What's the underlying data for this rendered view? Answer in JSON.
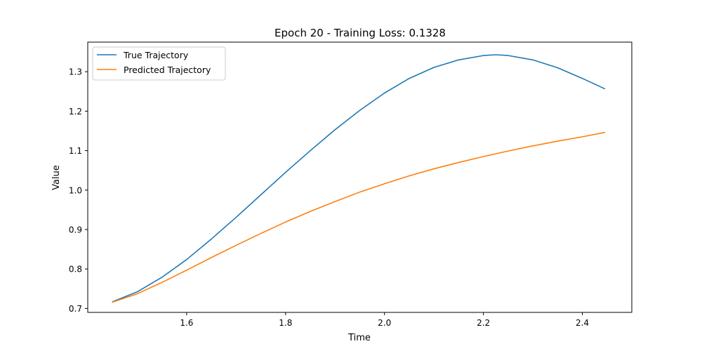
{
  "chart_data": {
    "type": "line",
    "title": "Epoch 20 - Training Loss: 0.1328",
    "xlabel": "Time",
    "ylabel": "Value",
    "xlim": [
      1.4,
      2.5
    ],
    "ylim": [
      0.69,
      1.375
    ],
    "xticks": [
      1.6,
      1.8,
      2.0,
      2.2,
      2.4
    ],
    "xtick_labels": [
      "1.6",
      "1.8",
      "2.0",
      "2.2",
      "2.4"
    ],
    "yticks": [
      0.7,
      0.8,
      0.9,
      1.0,
      1.1,
      1.2,
      1.3
    ],
    "ytick_labels": [
      "0.7",
      "0.8",
      "0.9",
      "1.0",
      "1.1",
      "1.2",
      "1.3"
    ],
    "grid": false,
    "legend_position": "top-left",
    "series": [
      {
        "name": "True Trajectory",
        "color": "#1f77b4",
        "x": [
          1.45,
          1.5,
          1.55,
          1.6,
          1.65,
          1.7,
          1.75,
          1.8,
          1.85,
          1.9,
          1.95,
          2.0,
          2.05,
          2.1,
          2.15,
          2.2,
          2.225,
          2.25,
          2.3,
          2.35,
          2.4,
          2.445
        ],
        "y": [
          0.717,
          0.742,
          0.779,
          0.824,
          0.876,
          0.931,
          0.988,
          1.045,
          1.1,
          1.153,
          1.202,
          1.246,
          1.283,
          1.311,
          1.33,
          1.341,
          1.343,
          1.341,
          1.33,
          1.31,
          1.283,
          1.257
        ]
      },
      {
        "name": "Predicted Trajectory",
        "color": "#ff7f0e",
        "x": [
          1.45,
          1.5,
          1.55,
          1.6,
          1.65,
          1.7,
          1.75,
          1.8,
          1.85,
          1.9,
          1.95,
          2.0,
          2.05,
          2.1,
          2.15,
          2.2,
          2.25,
          2.3,
          2.35,
          2.4,
          2.445
        ],
        "y": [
          0.716,
          0.737,
          0.766,
          0.797,
          0.829,
          0.86,
          0.89,
          0.919,
          0.946,
          0.971,
          0.995,
          1.016,
          1.036,
          1.054,
          1.07,
          1.085,
          1.099,
          1.112,
          1.124,
          1.135,
          1.146
        ]
      }
    ]
  }
}
